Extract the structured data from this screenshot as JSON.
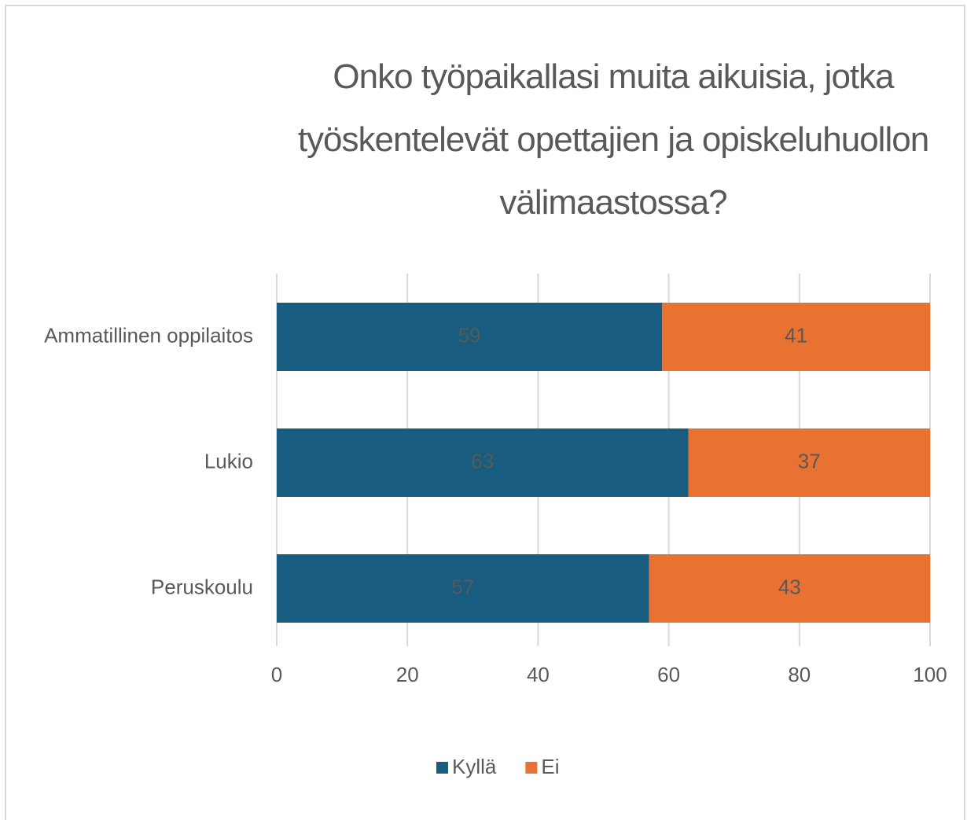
{
  "chart_data": {
    "type": "stacked_bar_horizontal",
    "title": "Onko työpaikallasi muita aikuisia, jotka työskentelevät opettajien ja opiskeluhuollon välimaastossa?",
    "categories": [
      "Ammatillinen oppilaitos",
      "Lukio",
      "Peruskoulu"
    ],
    "series": [
      {
        "name": "Kyllä",
        "color": "#185c80",
        "values": [
          59,
          63,
          57
        ]
      },
      {
        "name": "Ei",
        "color": "#e97132",
        "values": [
          41,
          37,
          43
        ]
      }
    ],
    "xlim": [
      0,
      100
    ],
    "xticks": [
      0,
      20,
      40,
      60,
      80,
      100
    ],
    "grid": true,
    "legend": "bottom"
  }
}
